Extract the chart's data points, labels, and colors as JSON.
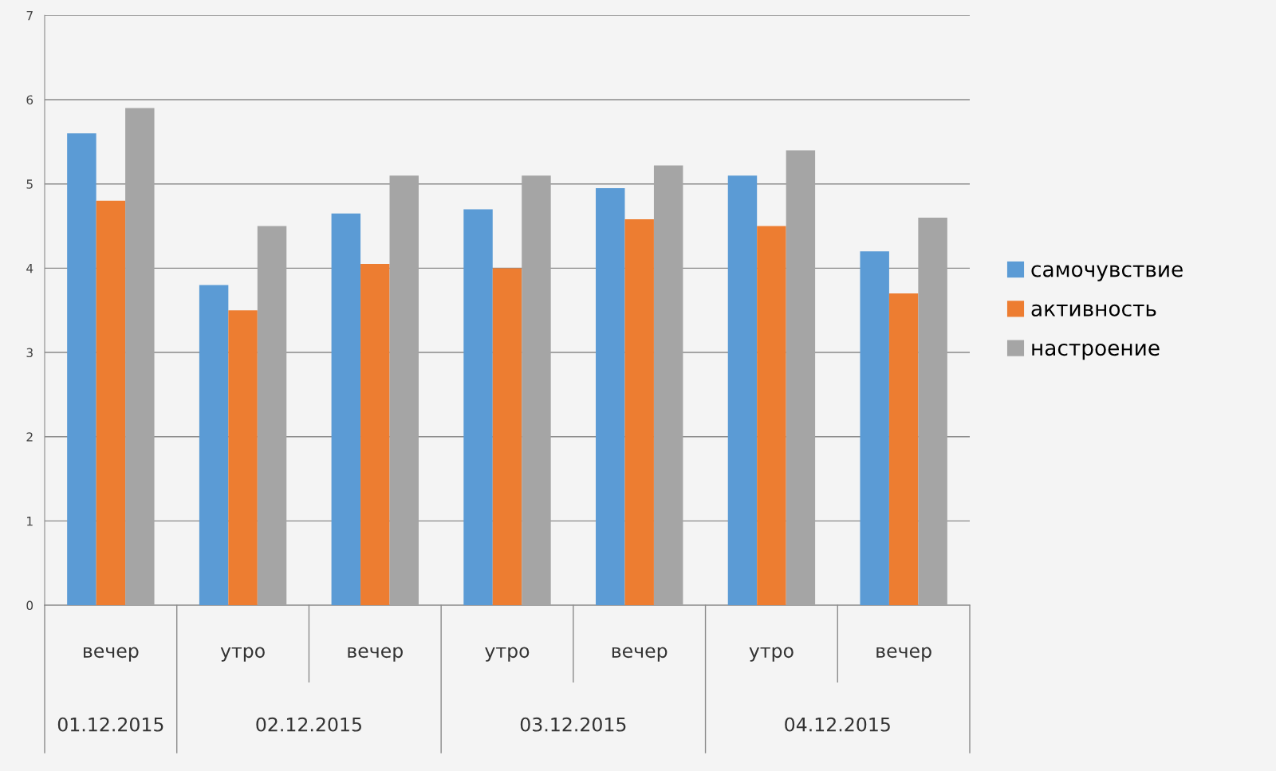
{
  "chart_data": {
    "type": "bar",
    "categories": [
      "вечер",
      "утро",
      "вечер",
      "утро",
      "вечер",
      "утро",
      "вечер"
    ],
    "series": [
      {
        "name": "самочувствие",
        "color": "#5b9bd5",
        "values": [
          5.6,
          3.8,
          4.65,
          4.7,
          4.95,
          5.1,
          4.2
        ]
      },
      {
        "name": "активность",
        "color": "#ed7d31",
        "values": [
          4.8,
          3.5,
          4.05,
          4.0,
          4.58,
          4.5,
          3.7
        ]
      },
      {
        "name": "настроение",
        "color": "#a5a5a5",
        "values": [
          5.9,
          4.5,
          5.1,
          5.1,
          5.22,
          5.4,
          4.6
        ]
      }
    ],
    "annotations": [
      "01.12.2015",
      "02.12.2015",
      "03.12.2015",
      "04.12.2015"
    ],
    "ylim": [
      0,
      7
    ],
    "yticks": [
      0,
      1,
      2,
      3,
      4,
      5,
      6,
      7
    ],
    "grid": "y",
    "legend": "right"
  }
}
